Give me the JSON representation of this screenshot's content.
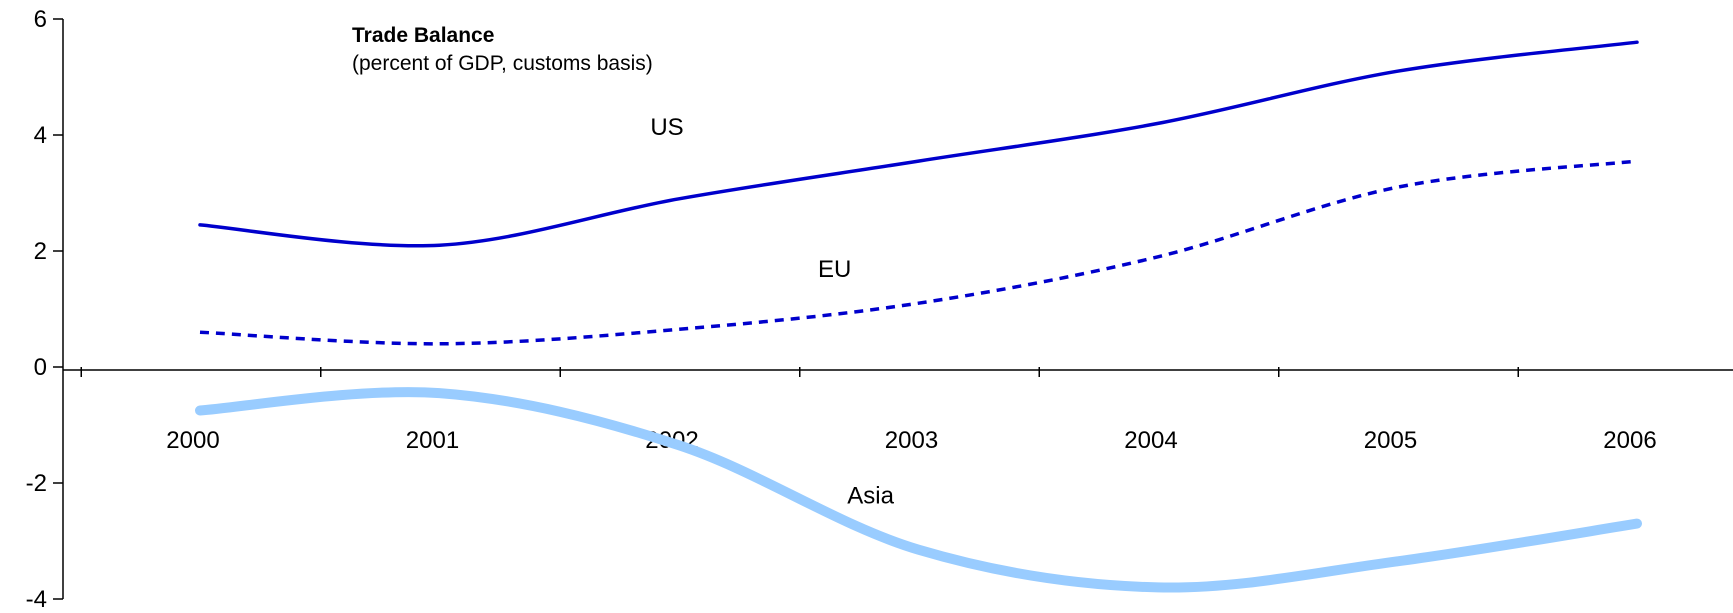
{
  "chart_data": {
    "type": "line",
    "title": "Trade Balance",
    "subtitle": "(percent of GDP, customs basis)",
    "xlabel": "",
    "ylabel": "",
    "x": [
      2000,
      2001,
      2002,
      2003,
      2004,
      2005,
      2006
    ],
    "ylim": [
      -4,
      6
    ],
    "yticks": [
      -4,
      -2,
      0,
      2,
      4,
      6
    ],
    "grid": false,
    "legend": "none",
    "series": [
      {
        "name": "US",
        "values": [
          2.45,
          2.1,
          2.9,
          3.55,
          4.2,
          5.1,
          5.6
        ],
        "color": "#0000cc",
        "style": "solid"
      },
      {
        "name": "EU",
        "values": [
          0.6,
          0.4,
          0.65,
          1.1,
          1.9,
          3.1,
          3.55
        ],
        "color": "#0000cc",
        "style": "dashed"
      },
      {
        "name": "Asia",
        "values": [
          -0.75,
          -0.45,
          -1.35,
          -3.15,
          -3.8,
          -3.35,
          -2.7
        ],
        "color": "#99ccff",
        "style": "thick"
      }
    ]
  }
}
